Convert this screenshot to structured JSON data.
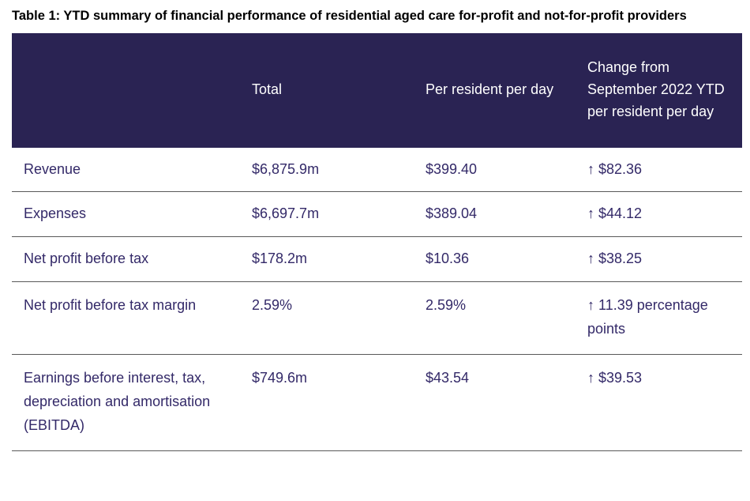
{
  "title": "Table 1: YTD summary of financial performance of residential aged care for-profit and not-for-profit providers",
  "colors": {
    "header_bg": "#2a2353",
    "header_text": "#ffffff",
    "body_text": "#332968",
    "divider": "#595959",
    "title_text": "#000000"
  },
  "table": {
    "columns": [
      "",
      "Total",
      "Per resident per day",
      "Change from September 2022 YTD per resident per day"
    ],
    "rows": [
      {
        "label": "Revenue",
        "total": "$6,875.9m",
        "per_day": "$399.40",
        "change_arrow": "↑",
        "change_value": "$82.36"
      },
      {
        "label": "Expenses",
        "total": "$6,697.7m",
        "per_day": "$389.04",
        "change_arrow": "↑",
        "change_value": "$44.12"
      },
      {
        "label": "Net profit before tax",
        "total": "$178.2m",
        "per_day": "$10.36",
        "change_arrow": "↑",
        "change_value": "$38.25"
      },
      {
        "label": "Net profit before tax margin",
        "total": "2.59%",
        "per_day": "2.59%",
        "change_arrow": "↑",
        "change_value": "11.39 percentage points"
      },
      {
        "label": "Earnings before interest, tax, depreciation and amortisation (EBITDA)",
        "total": "$749.6m",
        "per_day": "$43.54",
        "change_arrow": "↑",
        "change_value": "$39.53"
      }
    ]
  }
}
